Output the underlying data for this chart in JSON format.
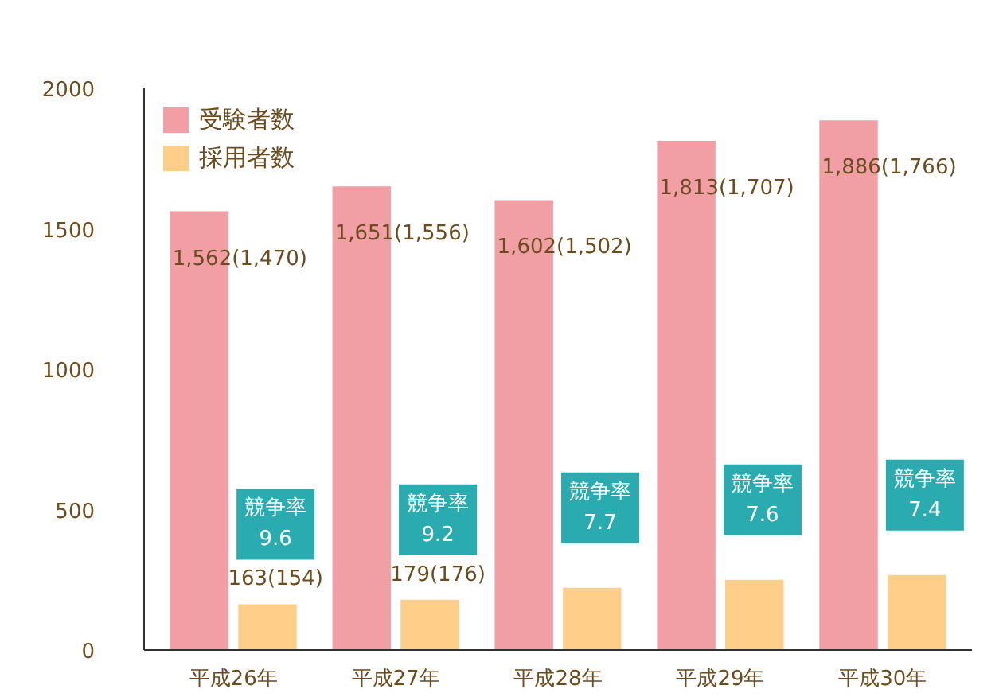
{
  "chart_data": {
    "type": "bar",
    "categories": [
      "平成26年",
      "平成27年",
      "平成28年",
      "平成29年",
      "平成30年"
    ],
    "series": [
      {
        "name": "受験者数",
        "color": "#f29ea5",
        "values": [
          1562,
          1651,
          1602,
          1813,
          1886
        ],
        "value_labels": [
          "1,562(1,470)",
          "1,651(1,556)",
          "1,602(1,502)",
          "1,813(1,707)",
          "1,886(1,766)"
        ]
      },
      {
        "name": "採用者数",
        "color": "#ffcf8a",
        "values": [
          163,
          179,
          222,
          250,
          267
        ],
        "value_labels": [
          "163(154)",
          "179(176)",
          null,
          null,
          null
        ]
      }
    ],
    "annotations": [
      "競争率\n9.6",
      "競争率\n9.2",
      "競争率\n7.7",
      "競争率\n7.6",
      "競争率\n7.4"
    ],
    "ylim": [
      0,
      2000
    ],
    "yticks": [
      0,
      500,
      1000,
      1500,
      2000
    ],
    "grid": false,
    "legend": "top left"
  }
}
